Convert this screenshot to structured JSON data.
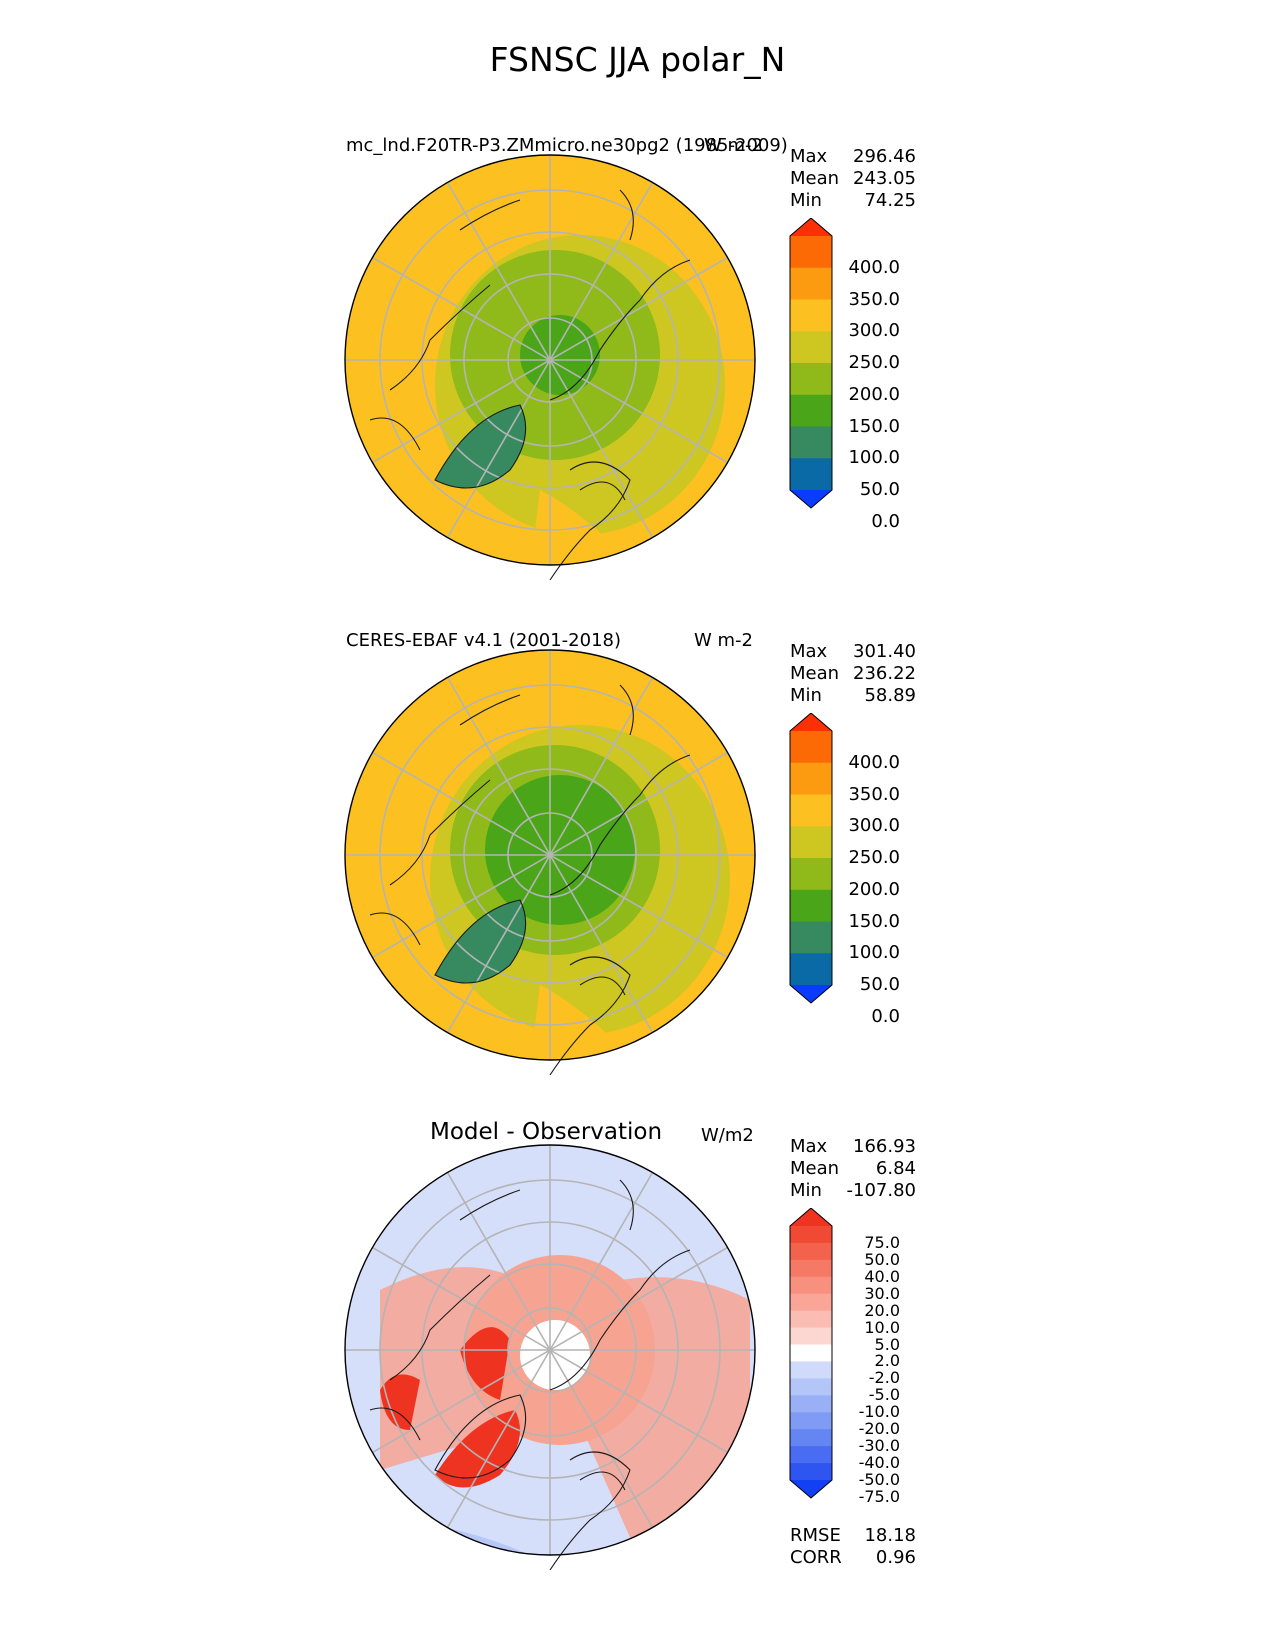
{
  "title": "FSNSC JJA polar_N",
  "panels": [
    {
      "id": "model",
      "name": "mc_lnd.F20TR-P3.ZMmicro.ne30pg2 (1985-2009)",
      "units": "W m-2",
      "stats": [
        {
          "label": "Max",
          "value": "296.46"
        },
        {
          "label": "Mean",
          "value": "243.05"
        },
        {
          "label": "Min",
          "value": "74.25"
        }
      ],
      "colorbar": {
        "colors": [
          "#0a3cff",
          "#0a6aa5",
          "#378a5f",
          "#4aa618",
          "#8fba1a",
          "#cfc721",
          "#fcc020",
          "#fc9a10",
          "#fc6a05",
          "#fc2f05"
        ],
        "ticks": [
          "400.0",
          "350.0",
          "300.0",
          "250.0",
          "200.0",
          "150.0",
          "100.0",
          "50.0",
          "0.0"
        ]
      }
    },
    {
      "id": "obs",
      "name": "CERES-EBAF v4.1 (2001-2018)",
      "units": "W m-2",
      "stats": [
        {
          "label": "Max",
          "value": "301.40"
        },
        {
          "label": "Mean",
          "value": "236.22"
        },
        {
          "label": "Min",
          "value": "58.89"
        }
      ],
      "colorbar": {
        "colors": [
          "#0a3cff",
          "#0a6aa5",
          "#378a5f",
          "#4aa618",
          "#8fba1a",
          "#cfc721",
          "#fcc020",
          "#fc9a10",
          "#fc6a05",
          "#fc2f05"
        ],
        "ticks": [
          "400.0",
          "350.0",
          "300.0",
          "250.0",
          "200.0",
          "150.0",
          "100.0",
          "50.0",
          "0.0"
        ]
      }
    },
    {
      "id": "diff",
      "name": "Model - Observation",
      "units": "W/m2",
      "stats": [
        {
          "label": "Max",
          "value": "166.93"
        },
        {
          "label": "Mean",
          "value": "6.84"
        },
        {
          "label": "Min",
          "value": "-107.80"
        }
      ],
      "extra_stats": [
        {
          "label": "RMSE",
          "value": "18.18"
        },
        {
          "label": "CORR",
          "value": "0.96"
        }
      ],
      "colorbar": {
        "colors": [
          "#1240f5",
          "#2f55f0",
          "#4a6cf2",
          "#6585f3",
          "#7f9bf4",
          "#9ab0f6",
          "#b4c5f8",
          "#d0dafa",
          "#ffffff",
          "#fcd6d0",
          "#fbbdb3",
          "#f9a698",
          "#f7907e",
          "#f57a66",
          "#f3624d",
          "#f04a35",
          "#ee3320"
        ],
        "ticks": [
          "75.0",
          "50.0",
          "40.0",
          "30.0",
          "20.0",
          "10.0",
          "5.0",
          "2.0",
          "-2.0",
          "-5.0",
          "-10.0",
          "-20.0",
          "-30.0",
          "-40.0",
          "-50.0",
          "-75.0"
        ]
      }
    }
  ],
  "map_colors": {
    "ocean_model": "#fcc020",
    "ring_model": "#cfc721",
    "arctic_model": "#8fba1a",
    "core_model": "#4aa618",
    "greenland": "#378a5f",
    "diff_bg": "#d6dffa",
    "diff_warm": "#f7a392",
    "diff_hot": "#ee3320",
    "diff_cool": "#7f9bf4"
  }
}
